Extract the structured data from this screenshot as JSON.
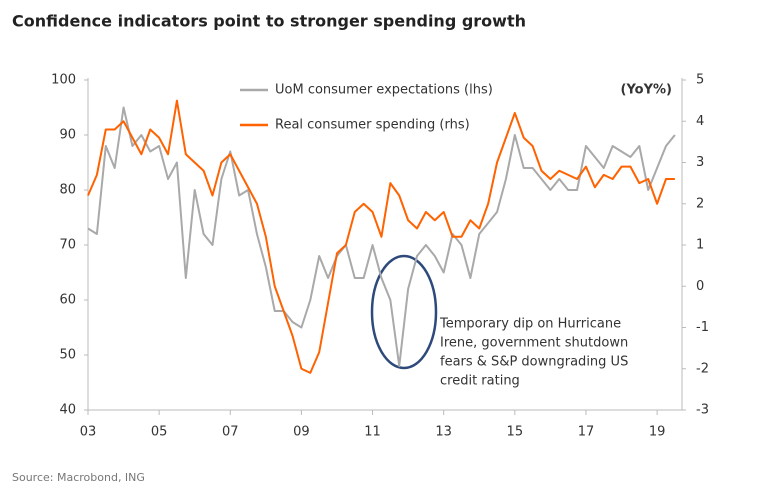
{
  "chart_data": {
    "type": "line",
    "title": "Confidence indicators point to stronger spending growth",
    "source": "Source: Macrobond, ING",
    "y2_label": "(YoY%)",
    "annotation": [
      "Temporary dip on Hurricane",
      "Irene, government shutdown",
      "fears & S&P downgrading US",
      "credit rating"
    ],
    "x": [
      2003,
      2003.25,
      2003.5,
      2003.75,
      2004,
      2004.25,
      2004.5,
      2004.75,
      2005,
      2005.25,
      2005.5,
      2005.75,
      2006,
      2006.25,
      2006.5,
      2006.75,
      2007,
      2007.25,
      2007.5,
      2007.75,
      2008,
      2008.25,
      2008.5,
      2008.75,
      2009,
      2009.25,
      2009.5,
      2009.75,
      2010,
      2010.25,
      2010.5,
      2010.75,
      2011,
      2011.25,
      2011.5,
      2011.75,
      2012,
      2012.25,
      2012.5,
      2012.75,
      2013,
      2013.25,
      2013.5,
      2013.75,
      2014,
      2014.25,
      2014.5,
      2014.75,
      2015,
      2015.25,
      2015.5,
      2015.75,
      2016,
      2016.25,
      2016.5,
      2016.75,
      2017,
      2017.25,
      2017.5,
      2017.75,
      2018,
      2018.25,
      2018.5,
      2018.75,
      2019,
      2019.25,
      2019.5
    ],
    "series": [
      {
        "name": "UoM consumer expectations (lhs)",
        "color": "#a9a9a9",
        "axis": "y",
        "values": [
          73,
          72,
          88,
          84,
          95,
          88,
          90,
          87,
          88,
          82,
          85,
          64,
          80,
          72,
          70,
          82,
          87,
          79,
          80,
          72,
          66,
          58,
          58,
          56,
          55,
          60,
          68,
          64,
          68,
          70,
          64,
          64,
          70,
          64,
          60,
          48,
          62,
          68,
          70,
          68,
          65,
          72,
          70,
          64,
          72,
          74,
          76,
          82,
          90,
          84,
          84,
          82,
          80,
          82,
          80,
          80,
          88,
          86,
          84,
          88,
          87,
          86,
          88,
          80,
          84,
          88,
          90
        ]
      },
      {
        "name": "Real consumer spending (rhs)",
        "color": "#ff6200",
        "axis": "y2",
        "values": [
          2.2,
          2.7,
          3.8,
          3.8,
          4.0,
          3.6,
          3.2,
          3.8,
          3.6,
          3.2,
          4.5,
          3.2,
          3.0,
          2.8,
          2.2,
          3.0,
          3.2,
          2.8,
          2.4,
          2.0,
          1.2,
          0.0,
          -0.6,
          -1.2,
          -2.0,
          -2.1,
          -1.6,
          -0.4,
          0.8,
          1.0,
          1.8,
          2.0,
          1.8,
          1.2,
          2.5,
          2.2,
          1.6,
          1.4,
          1.8,
          1.6,
          1.8,
          1.2,
          1.2,
          1.6,
          1.4,
          2.0,
          3.0,
          3.6,
          4.2,
          3.6,
          3.4,
          2.8,
          2.6,
          2.8,
          2.7,
          2.6,
          2.9,
          2.4,
          2.7,
          2.6,
          2.9,
          2.9,
          2.5,
          2.6,
          2.0,
          2.6,
          2.6
        ]
      }
    ],
    "xlim": [
      2003,
      2019.7
    ],
    "xticks": [
      {
        "value": 2003,
        "label": "03"
      },
      {
        "value": 2005,
        "label": "05"
      },
      {
        "value": 2007,
        "label": "07"
      },
      {
        "value": 2009,
        "label": "09"
      },
      {
        "value": 2011,
        "label": "11"
      },
      {
        "value": 2013,
        "label": "13"
      },
      {
        "value": 2015,
        "label": "15"
      },
      {
        "value": 2017,
        "label": "17"
      },
      {
        "value": 2019,
        "label": "19"
      }
    ],
    "ylim": [
      40,
      100
    ],
    "yticks": [
      40,
      50,
      60,
      70,
      80,
      90,
      100
    ],
    "y2lim": [
      -3,
      5
    ],
    "y2ticks": [
      -3,
      -2,
      -1,
      0,
      1,
      2,
      3,
      4,
      5
    ]
  }
}
